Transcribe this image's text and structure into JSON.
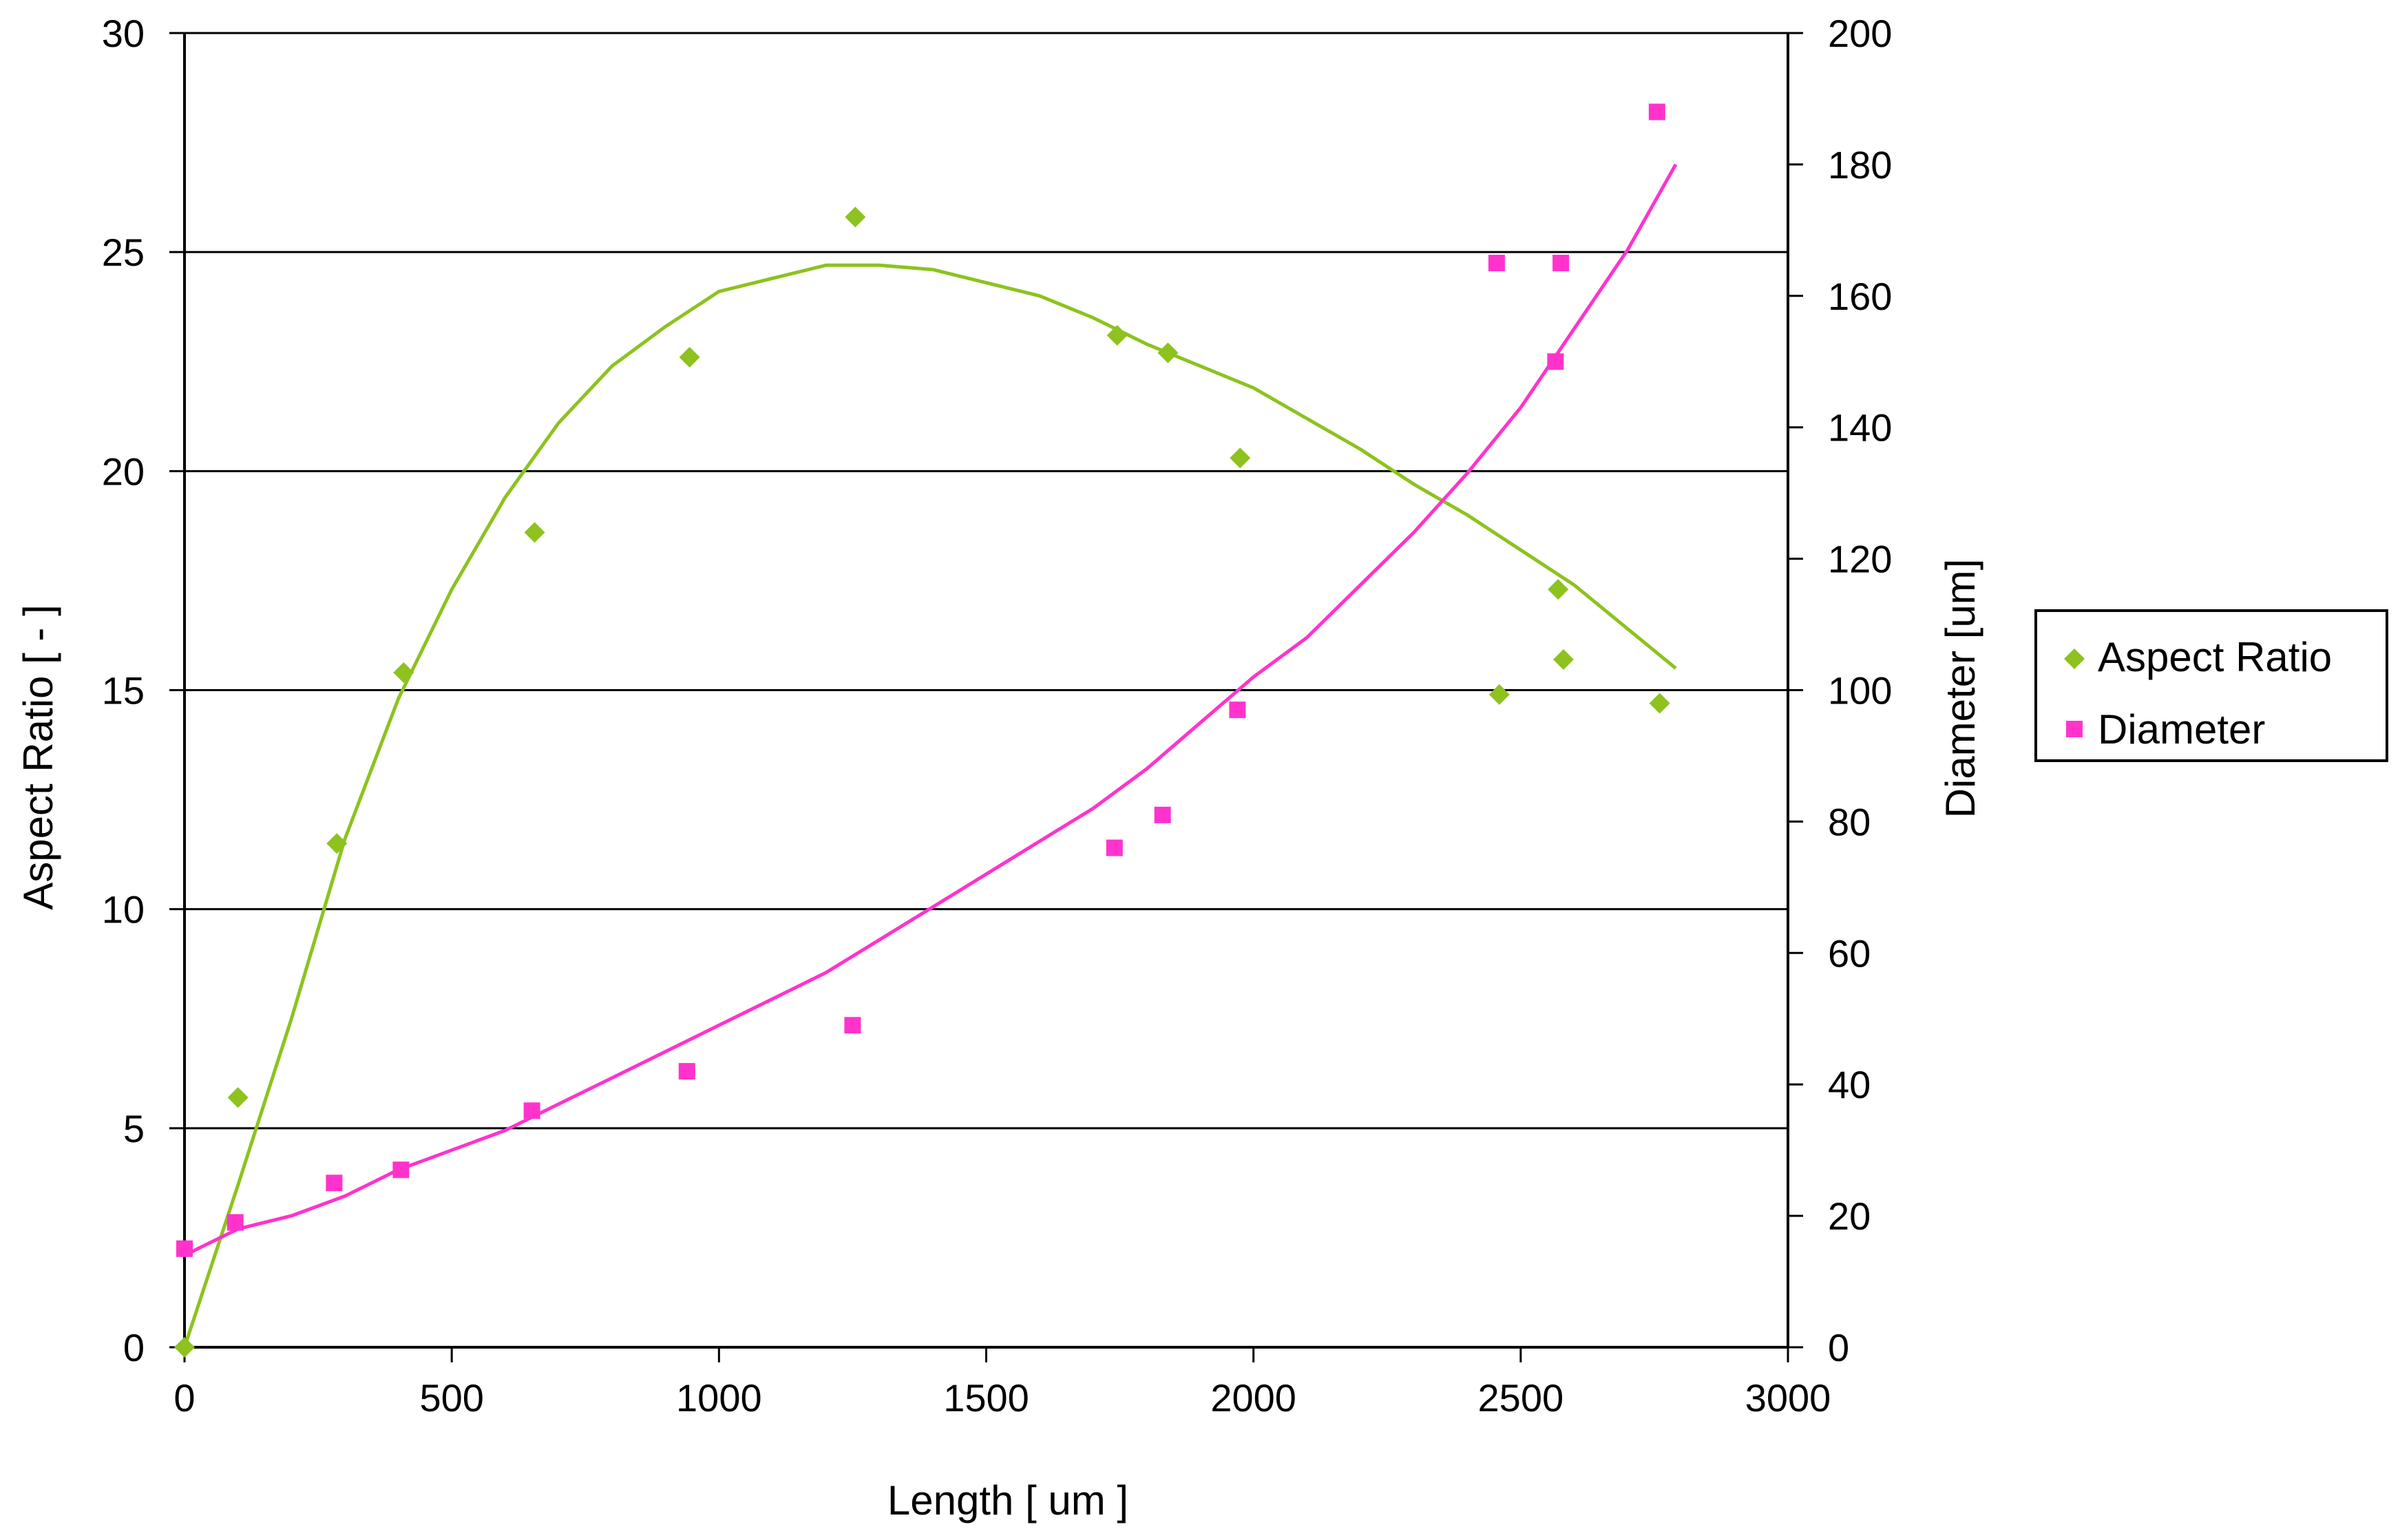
{
  "chart_data": {
    "type": "scatter",
    "xlabel": "Length [ um ]",
    "ylabel": "Aspect Ratio [ - ]",
    "y2label": "Diameter [um]",
    "xlim": [
      0,
      3000
    ],
    "ylim": [
      0,
      30
    ],
    "y2lim": [
      0,
      200
    ],
    "x_ticks": [
      "0",
      "500",
      "1000",
      "1500",
      "2000",
      "2500",
      "3000"
    ],
    "y_ticks": [
      "0",
      "5",
      "10",
      "15",
      "20",
      "25",
      "30"
    ],
    "y2_ticks": [
      "0",
      "20",
      "40",
      "60",
      "80",
      "100",
      "120",
      "140",
      "160",
      "180",
      "200"
    ],
    "grid": "horizontal",
    "legend_position": "right",
    "series": [
      {
        "name": "Aspect Ratio",
        "axis": "left",
        "marker": "diamond",
        "color": "#8dc21f",
        "x": [
          0,
          100,
          285,
          410,
          655,
          945,
          1255,
          1745,
          1840,
          1975,
          2460,
          2570,
          2580,
          2760
        ],
        "y": [
          0,
          5.7,
          11.5,
          15.4,
          18.6,
          22.6,
          25.8,
          23.1,
          22.7,
          20.3,
          14.9,
          17.3,
          15.7,
          14.7
        ],
        "trend": {
          "x": [
            0,
            100,
            200,
            300,
            400,
            500,
            600,
            700,
            800,
            900,
            1000,
            1100,
            1200,
            1300,
            1400,
            1500,
            1600,
            1700,
            1800,
            1900,
            2000,
            2100,
            2200,
            2300,
            2400,
            2500,
            2600,
            2700,
            2790
          ],
          "y": [
            0,
            3.7,
            7.5,
            11.6,
            14.8,
            17.3,
            19.4,
            21.1,
            22.4,
            23.3,
            24.1,
            24.4,
            24.7,
            24.7,
            24.6,
            24.3,
            24.0,
            23.5,
            22.9,
            22.4,
            21.9,
            21.2,
            20.5,
            19.7,
            19.0,
            18.2,
            17.4,
            16.4,
            15.5
          ]
        }
      },
      {
        "name": "Diameter",
        "axis": "right",
        "marker": "square",
        "color": "#ff33cc",
        "x": [
          0,
          95,
          280,
          405,
          650,
          940,
          1250,
          1740,
          1830,
          1970,
          2455,
          2565,
          2575,
          2755
        ],
        "y": [
          15,
          19,
          25,
          27,
          36,
          42,
          49,
          76,
          81,
          97,
          165,
          150,
          165,
          188
        ],
        "trend": {
          "x": [
            0,
            100,
            200,
            300,
            400,
            500,
            600,
            700,
            800,
            900,
            1000,
            1100,
            1200,
            1300,
            1400,
            1500,
            1600,
            1700,
            1800,
            1900,
            2000,
            2100,
            2200,
            2300,
            2400,
            2500,
            2600,
            2700,
            2790
          ],
          "y": [
            14,
            18,
            20,
            23,
            27,
            30,
            33,
            37,
            41,
            45,
            49,
            53,
            57,
            62,
            67,
            72,
            77,
            82,
            88,
            95,
            102,
            108,
            116,
            124,
            133,
            143,
            155,
            167,
            180
          ]
        }
      }
    ]
  }
}
